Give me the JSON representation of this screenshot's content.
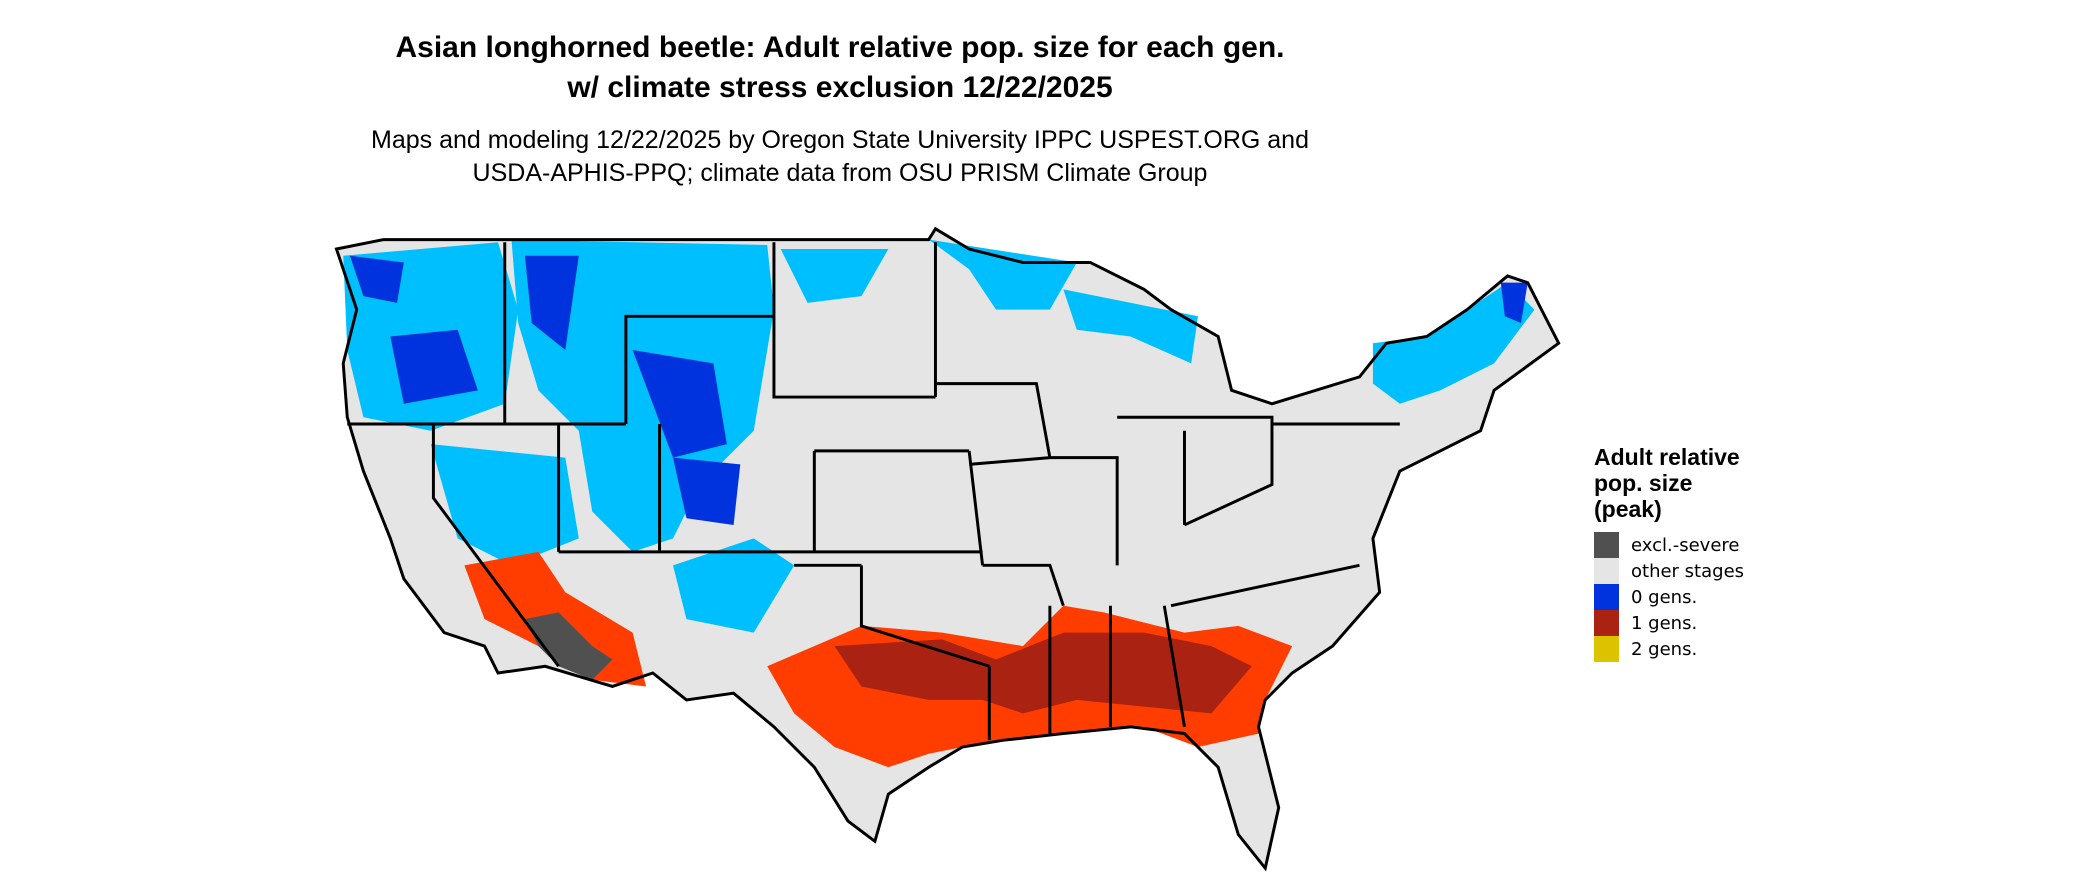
{
  "title_lines": [
    "Asian longhorned beetle: Adult relative pop. size for each gen.",
    "w/ climate stress exclusion 12/22/2025"
  ],
  "subtitle_lines": [
    "Maps and modeling 12/22/2025 by Oregon State University IPPC USPEST.ORG and",
    "USDA-APHIS-PPQ; climate data from OSU PRISM Climate Group"
  ],
  "legend": {
    "title_lines": [
      "Adult relative",
      "pop. size",
      "(peak)"
    ],
    "items": [
      {
        "label": "excl.-severe",
        "color": "#505050"
      },
      {
        "label": "other stages",
        "color": "#e5e5e5"
      },
      {
        "label": "0 gens.",
        "color": "#0033dd"
      },
      {
        "label": "1 gens.",
        "color": "#aa2211"
      },
      {
        "label": "2 gens.",
        "color": "#dcc300"
      }
    ]
  },
  "colors": {
    "cold_light": "#00bfff",
    "cold_dark": "#0033dd",
    "warm_light": "#ff3d00",
    "warm_dark": "#aa2211",
    "land": "#e5e5e5",
    "excluded": "#505050"
  }
}
